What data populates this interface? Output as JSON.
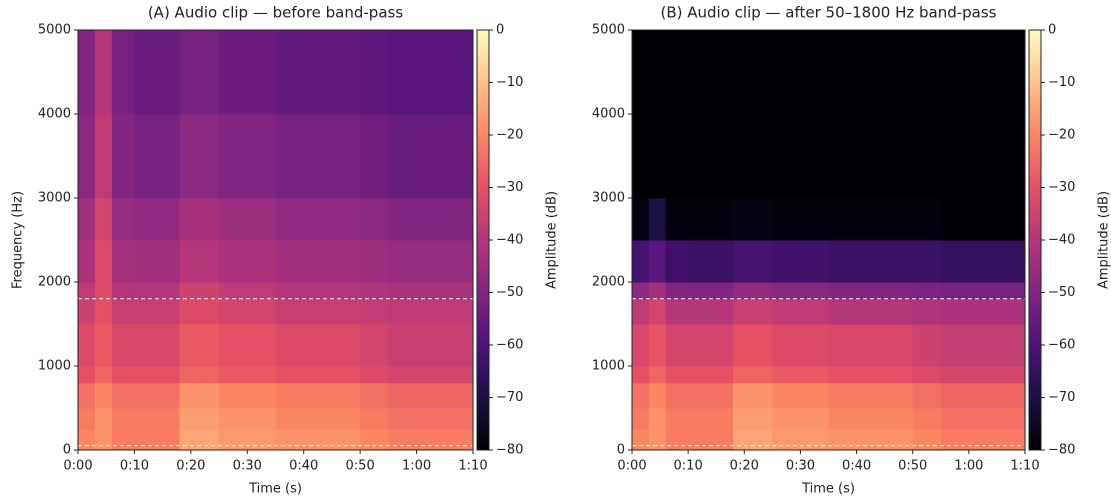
{
  "chart_data": [
    {
      "type": "heatmap",
      "title": "(A) Audio clip — before band-pass",
      "x_label": "Time (s)",
      "y_label": "Frequency (Hz)",
      "colorbar_label": "Amplitude (dB)",
      "x_edges": [
        0,
        3,
        6,
        10,
        18,
        25,
        35,
        50,
        55,
        70
      ],
      "y_edges": [
        0,
        250,
        500,
        800,
        1000,
        1500,
        1800,
        2000,
        2500,
        3000,
        4000,
        5000
      ],
      "z": [
        [
          -20,
          -18,
          -22,
          -22,
          -15,
          -17,
          -18,
          -20,
          -22
        ],
        [
          -22,
          -18,
          -22,
          -22,
          -16,
          -18,
          -20,
          -22,
          -24
        ],
        [
          -24,
          -20,
          -24,
          -24,
          -18,
          -20,
          -22,
          -24,
          -26
        ],
        [
          -30,
          -26,
          -30,
          -30,
          -26,
          -28,
          -30,
          -32,
          -34
        ],
        [
          -32,
          -28,
          -33,
          -33,
          -28,
          -30,
          -32,
          -34,
          -36
        ],
        [
          -35,
          -30,
          -36,
          -36,
          -32,
          -34,
          -36,
          -37,
          -38
        ],
        [
          -38,
          -32,
          -40,
          -40,
          -35,
          -38,
          -40,
          -41,
          -42
        ],
        [
          -42,
          -32,
          -43,
          -44,
          -40,
          -42,
          -44,
          -45,
          -46
        ],
        [
          -44,
          -34,
          -46,
          -47,
          -43,
          -45,
          -47,
          -48,
          -50
        ],
        [
          -48,
          -38,
          -50,
          -52,
          -48,
          -50,
          -52,
          -53,
          -55
        ],
        [
          -50,
          -40,
          -52,
          -55,
          -52,
          -54,
          -56,
          -57,
          -58
        ]
      ],
      "band": [
        50,
        1800
      ],
      "xlim": [
        0,
        70
      ],
      "ylim": [
        0,
        5000
      ],
      "xticks": [
        {
          "value": 0,
          "label": "0:00"
        },
        {
          "value": 10,
          "label": "0:10"
        },
        {
          "value": 20,
          "label": "0:20"
        },
        {
          "value": 30,
          "label": "0:30"
        },
        {
          "value": 40,
          "label": "0:40"
        },
        {
          "value": 50,
          "label": "0:50"
        },
        {
          "value": 60,
          "label": "1:00"
        },
        {
          "value": 70,
          "label": "1:10"
        }
      ],
      "yticks": [
        0,
        1000,
        2000,
        3000,
        4000,
        5000
      ],
      "clim": [
        -80,
        0
      ],
      "cticks": [
        0,
        {
          "value": -10,
          "label": "−10"
        },
        {
          "value": -20,
          "label": "−20"
        },
        {
          "value": -30,
          "label": "−30"
        },
        {
          "value": -40,
          "label": "−40"
        },
        {
          "value": -50,
          "label": "−50"
        },
        {
          "value": -60,
          "label": "−60"
        },
        {
          "value": -70,
          "label": "−70"
        },
        {
          "value": -80,
          "label": "−80"
        }
      ],
      "colorscale": [
        "#000004",
        "#1c1044",
        "#4f127b",
        "#812581",
        "#b5367a",
        "#e55064",
        "#fb8761",
        "#fec287",
        "#fcfdbf"
      ]
    },
    {
      "type": "heatmap",
      "title": "(B) Audio clip — after 50–1800 Hz band-pass",
      "x_label": "Time (s)",
      "colorbar_label": "Amplitude (dB)",
      "x_edges": [
        0,
        3,
        6,
        10,
        18,
        25,
        35,
        50,
        55,
        70
      ],
      "y_edges": [
        0,
        250,
        500,
        800,
        1000,
        1500,
        1800,
        2000,
        2500,
        3000,
        4000,
        5000
      ],
      "z": [
        [
          -20,
          -18,
          -22,
          -22,
          -15,
          -17,
          -18,
          -20,
          -22
        ],
        [
          -22,
          -18,
          -22,
          -22,
          -16,
          -18,
          -20,
          -22,
          -24
        ],
        [
          -24,
          -20,
          -24,
          -24,
          -18,
          -20,
          -22,
          -24,
          -26
        ],
        [
          -30,
          -26,
          -30,
          -30,
          -26,
          -28,
          -30,
          -32,
          -34
        ],
        [
          -33,
          -29,
          -34,
          -34,
          -30,
          -32,
          -33,
          -35,
          -37
        ],
        [
          -38,
          -34,
          -40,
          -40,
          -36,
          -38,
          -40,
          -41,
          -42
        ],
        [
          -48,
          -44,
          -50,
          -50,
          -47,
          -49,
          -50,
          -51,
          -52
        ],
        [
          -62,
          -58,
          -63,
          -64,
          -62,
          -63,
          -64,
          -64,
          -65
        ],
        [
          -78,
          -70,
          -79,
          -79,
          -78,
          -79,
          -79,
          -79,
          -80
        ],
        [
          -80,
          -80,
          -80,
          -80,
          -80,
          -80,
          -80,
          -80,
          -80
        ],
        [
          -80,
          -80,
          -80,
          -80,
          -80,
          -80,
          -80,
          -80,
          -80
        ]
      ],
      "band": [
        50,
        1800
      ],
      "xlim": [
        0,
        70
      ],
      "ylim": [
        0,
        5000
      ],
      "xticks": [
        {
          "value": 0,
          "label": "0:00"
        },
        {
          "value": 10,
          "label": "0:10"
        },
        {
          "value": 20,
          "label": "0:20"
        },
        {
          "value": 30,
          "label": "0:30"
        },
        {
          "value": 40,
          "label": "0:40"
        },
        {
          "value": 50,
          "label": "0:50"
        },
        {
          "value": 60,
          "label": "1:00"
        },
        {
          "value": 70,
          "label": "1:10"
        }
      ],
      "yticks": [
        0,
        1000,
        2000,
        3000,
        4000,
        5000
      ],
      "clim": [
        -80,
        0
      ],
      "cticks": [
        0,
        {
          "value": -10,
          "label": "−10"
        },
        {
          "value": -20,
          "label": "−20"
        },
        {
          "value": -30,
          "label": "−30"
        },
        {
          "value": -40,
          "label": "−40"
        },
        {
          "value": -50,
          "label": "−50"
        },
        {
          "value": -60,
          "label": "−60"
        },
        {
          "value": -70,
          "label": "−70"
        },
        {
          "value": -80,
          "label": "−80"
        }
      ],
      "colorscale": [
        "#000004",
        "#1c1044",
        "#4f127b",
        "#812581",
        "#b5367a",
        "#e55064",
        "#fb8761",
        "#fec287",
        "#fcfdbf"
      ]
    }
  ]
}
